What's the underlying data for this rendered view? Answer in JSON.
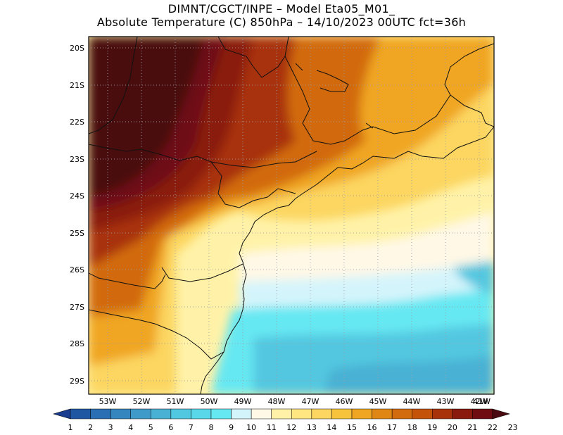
{
  "title": {
    "line1": "DIMNT/CGCT/INPE –  Model Eta05_M01_",
    "line2": "Absolute Temperature (C) 850hPa –  14/10/2023 00UTC fct=36h"
  },
  "map": {
    "lat_labels": [
      "20S",
      "21S",
      "22S",
      "23S",
      "24S",
      "25S",
      "26S",
      "27S",
      "28S",
      "29S"
    ],
    "lon_labels": [
      "53W",
      "52W",
      "51W",
      "50W",
      "49W",
      "48W",
      "47W",
      "46W",
      "45W",
      "44W",
      "43W",
      "42W",
      "41W"
    ],
    "regions": [
      {
        "name": "very-hot-core-northwest",
        "value": 23
      },
      {
        "name": "hot-band-north",
        "value": 21
      },
      {
        "name": "warm-band-center",
        "value": 18
      },
      {
        "name": "mild-band-coast",
        "value": 14
      },
      {
        "name": "cool-band-south",
        "value": 11
      },
      {
        "name": "cold-band-ocean-south",
        "value": 9
      }
    ]
  },
  "colorbar": {
    "labels": [
      "1",
      "2",
      "3",
      "4",
      "5",
      "6",
      "7",
      "8",
      "9",
      "10",
      "11",
      "12",
      "13",
      "14",
      "15",
      "16",
      "17",
      "18",
      "19",
      "20",
      "21",
      "22",
      "23"
    ],
    "colors": [
      "#1a3d8f",
      "#1f57a3",
      "#2a6eb3",
      "#3585bf",
      "#3f9ac9",
      "#49b1d4",
      "#52c7e0",
      "#5ad8ea",
      "#66e8f2",
      "#d4f4fb",
      "#fff8e6",
      "#fff2a8",
      "#ffe680",
      "#fcd660",
      "#f7c23c",
      "#f0a622",
      "#e08614",
      "#d26a0e",
      "#c45208",
      "#a8330a",
      "#8a1a0e",
      "#6e0c12",
      "#4a0a10"
    ]
  }
}
